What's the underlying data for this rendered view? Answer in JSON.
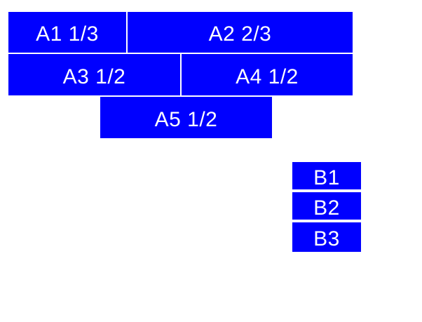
{
  "colors": {
    "background": "#ffffff",
    "box_fill": "#0000ff",
    "label_text": "#ffffff"
  },
  "group_a": {
    "boxes": [
      {
        "id": "a1",
        "label": "A1 1/3"
      },
      {
        "id": "a2",
        "label": "A2 2/3"
      },
      {
        "id": "a3",
        "label": "A3 1/2"
      },
      {
        "id": "a4",
        "label": "A4 1/2"
      },
      {
        "id": "a5",
        "label": "A5 1/2"
      }
    ]
  },
  "group_b": {
    "boxes": [
      {
        "id": "b1",
        "label": "B1"
      },
      {
        "id": "b2",
        "label": "B2"
      },
      {
        "id": "b3",
        "label": "B3"
      }
    ]
  }
}
